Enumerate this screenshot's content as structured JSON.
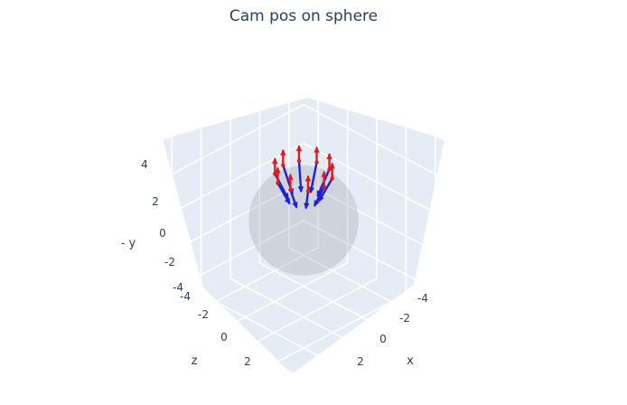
{
  "chart_data": {
    "type": "3d-scatter-cones",
    "title": "Cam pos on sphere",
    "axes": {
      "x": {
        "title": "x",
        "ticks": [
          "-4",
          "-2",
          "0",
          "2"
        ]
      },
      "y": {
        "title": "- y",
        "ticks": [
          "-4",
          "-2",
          "0",
          "2",
          "4"
        ]
      },
      "z": {
        "title": "z",
        "ticks": [
          "-4",
          "-2",
          "0",
          "2"
        ]
      }
    },
    "sphere": {
      "center": [
        0,
        0,
        0
      ],
      "radius": 2.7,
      "opacity": 0.25,
      "color": "#8c8c8c"
    },
    "cameras": [
      {
        "angle_deg": 0
      },
      {
        "angle_deg": 36
      },
      {
        "angle_deg": 72
      },
      {
        "angle_deg": 108
      },
      {
        "angle_deg": 144
      },
      {
        "angle_deg": 180
      },
      {
        "angle_deg": 216
      },
      {
        "angle_deg": 252
      },
      {
        "angle_deg": 288
      },
      {
        "angle_deg": 324
      }
    ],
    "camera_elevation": 2.3,
    "camera_ring_radius": 1.4,
    "colors": {
      "axis_up": "#e31a1c",
      "axis_forward": "#1f1fd6",
      "axis_side": "#2a9d2a",
      "pane": "#e5ecf6",
      "grid": "#ffffff"
    }
  }
}
